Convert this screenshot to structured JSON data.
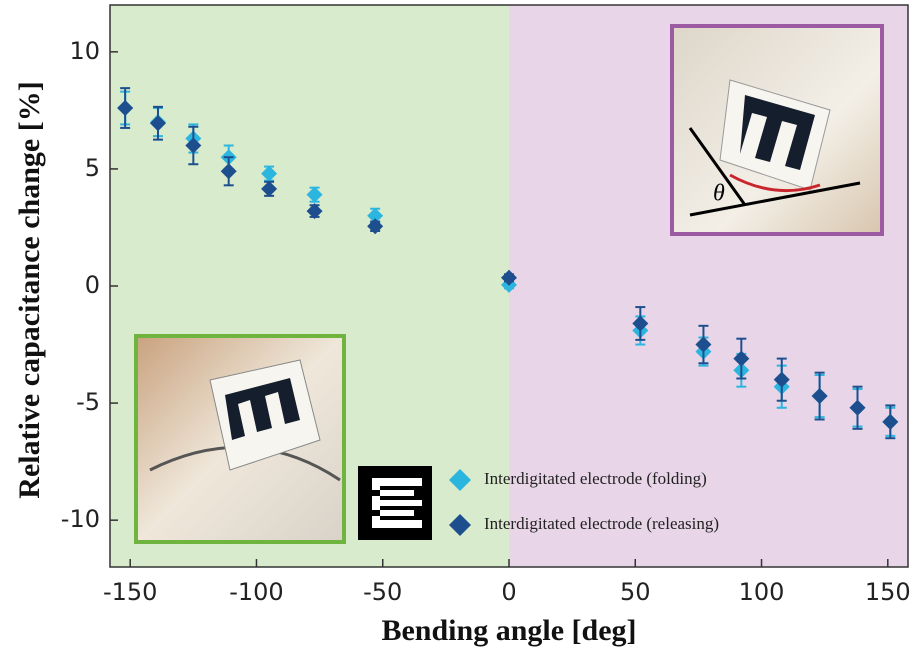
{
  "chart_data": {
    "type": "scatter",
    "x_label": "Bending angle [deg]",
    "y_label": "Relative capacitance change [%]",
    "x": [
      -152,
      -139,
      -125,
      -111,
      -95,
      -77,
      -53,
      0,
      52,
      77,
      92,
      108,
      123,
      138,
      151
    ],
    "series": [
      {
        "name": "Interdigitated electrode (folding)",
        "color": "#2bb5df",
        "values": [
          7.6,
          7.0,
          6.3,
          5.5,
          4.8,
          3.9,
          3.0,
          0.05,
          -1.9,
          -2.8,
          -3.6,
          -4.3,
          -4.7,
          -5.2,
          -5.8
        ],
        "errors": [
          0.7,
          0.6,
          0.6,
          0.5,
          0.3,
          0.3,
          0.3,
          0.15,
          0.6,
          0.6,
          0.7,
          0.9,
          0.9,
          0.8,
          0.6
        ]
      },
      {
        "name": "Interdigitated electrode (releasing)",
        "color": "#1d4f8e",
        "values": [
          7.6,
          6.95,
          6.0,
          4.9,
          4.15,
          3.2,
          2.55,
          0.35,
          -1.6,
          -2.5,
          -3.1,
          -4.0,
          -4.7,
          -5.2,
          -5.8
        ],
        "errors": [
          0.85,
          0.7,
          0.8,
          0.6,
          0.3,
          0.25,
          0.2,
          0.15,
          0.7,
          0.8,
          0.85,
          0.9,
          1.0,
          0.9,
          0.7
        ]
      }
    ],
    "xlim": [
      -158,
      158
    ],
    "ylim": [
      -12,
      12
    ],
    "xticks": [
      -150,
      -100,
      -50,
      0,
      50,
      100,
      150
    ],
    "yticks": [
      -10,
      -5,
      0,
      5,
      10
    ],
    "background_regions": [
      {
        "from": -158,
        "to": 0,
        "color": "#d9ebcd"
      },
      {
        "from": 0,
        "to": 158,
        "color": "#e8d5e8"
      }
    ]
  }
}
